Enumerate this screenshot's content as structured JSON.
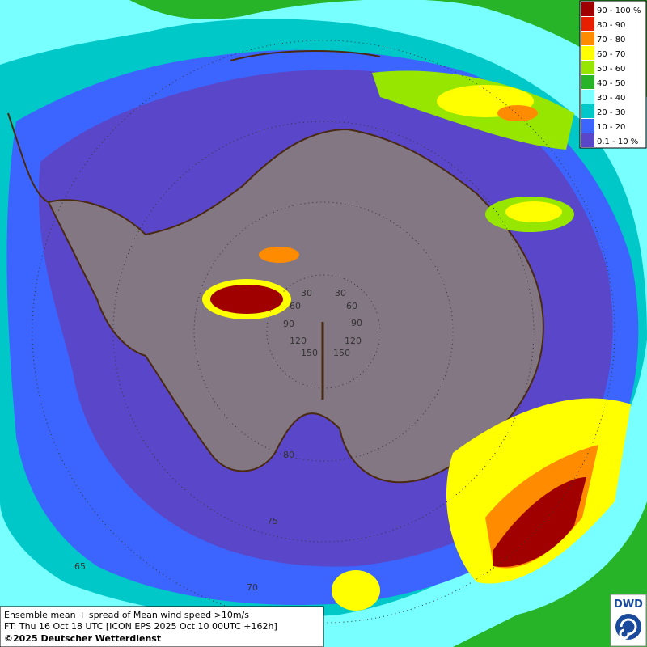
{
  "map": {
    "legend": [
      {
        "label": "90 - 100 %",
        "color": "#a00000"
      },
      {
        "label": "80 - 90",
        "color": "#e81e00"
      },
      {
        "label": "70 - 80",
        "color": "#ff8c00"
      },
      {
        "label": "60 - 70",
        "color": "#ffff00"
      },
      {
        "label": "50 - 60",
        "color": "#96e600"
      },
      {
        "label": "40 - 50",
        "color": "#28b428"
      },
      {
        "label": "30 - 40",
        "color": "#78ffff"
      },
      {
        "label": "20 - 30",
        "color": "#00c8c8"
      },
      {
        "label": "10 - 20",
        "color": "#3c64ff"
      },
      {
        "label": "0.1 - 10 %",
        "color": "#5a46c8"
      }
    ],
    "grid_labels": [
      "30",
      "60",
      "90",
      "120",
      "150",
      "30",
      "60",
      "90",
      "120",
      "150",
      "65",
      "70",
      "75",
      "80"
    ],
    "caption": [
      "Ensemble mean + spread of Mean wind speed >10m/s",
      "FT: Thu 16 Oct 18 UTC [ICON EPS 2025 Oct 10 00UTC +162h]",
      "©2025 Deutscher Wetterdienst"
    ],
    "logo": "DWD"
  }
}
